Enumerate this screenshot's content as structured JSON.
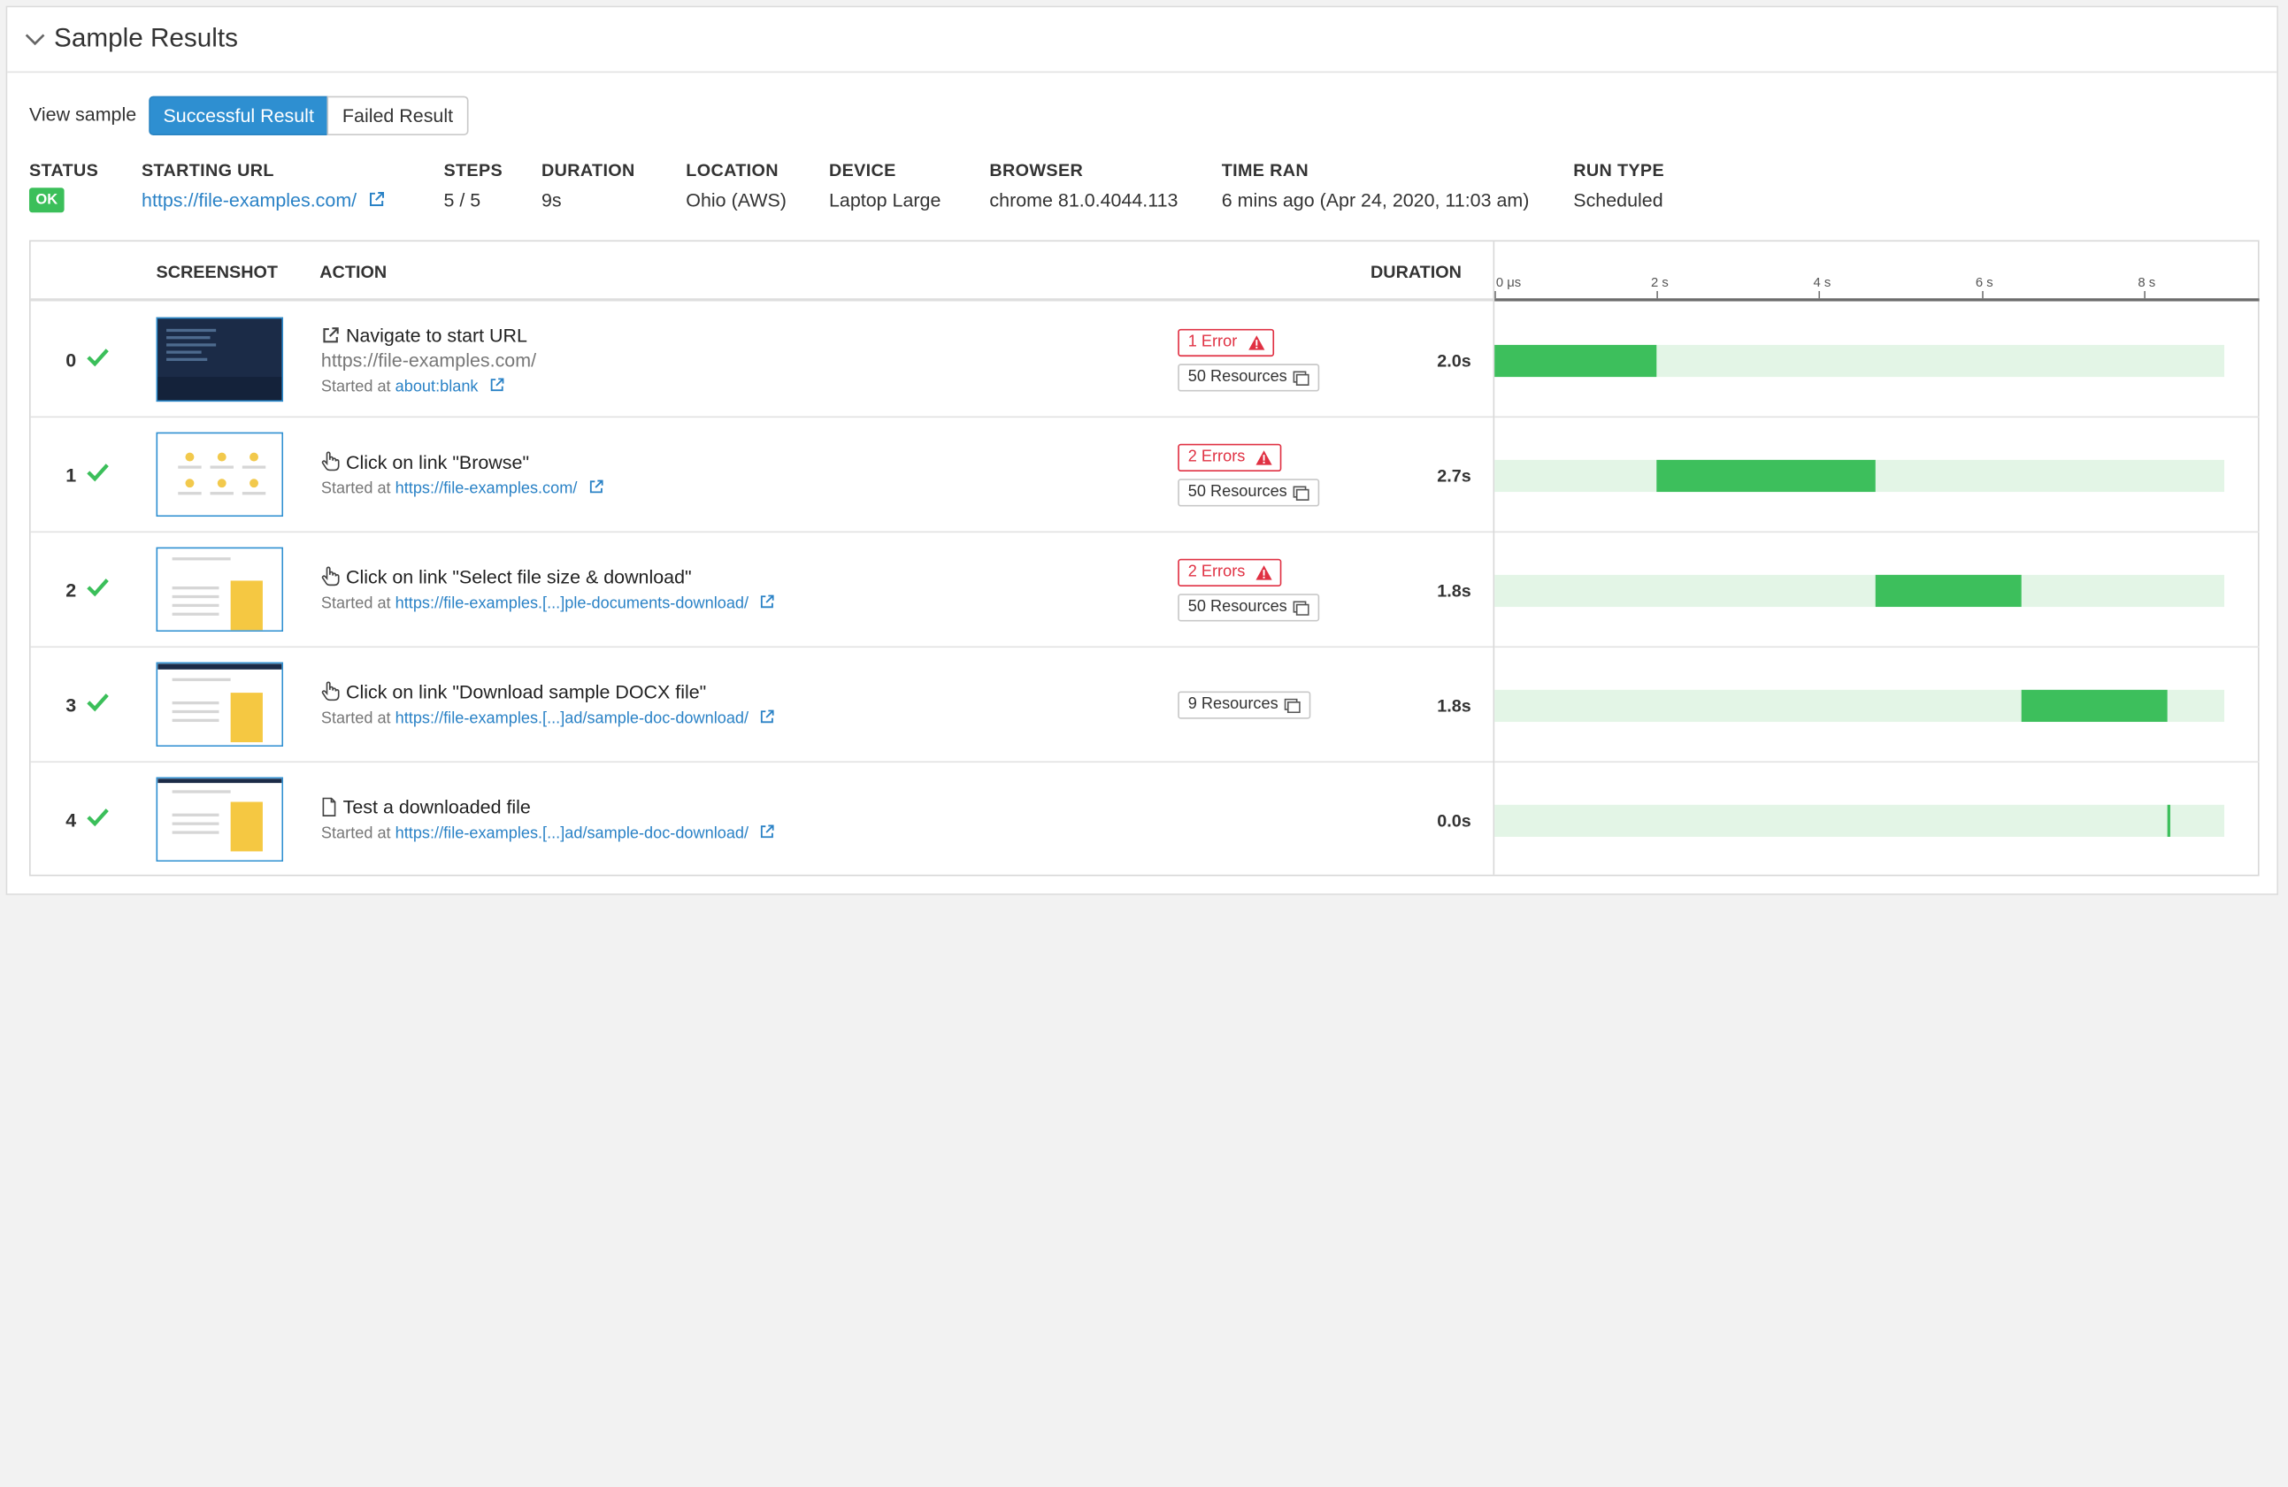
{
  "header": {
    "title": "Sample Results"
  },
  "view_sample": {
    "label": "View sample",
    "options": [
      "Successful Result",
      "Failed Result"
    ],
    "selected": "Successful Result"
  },
  "meta": {
    "status": {
      "label": "STATUS",
      "value": "OK"
    },
    "starting_url": {
      "label": "STARTING URL",
      "value": "https://file-examples.com/"
    },
    "steps": {
      "label": "STEPS",
      "value": "5 / 5"
    },
    "duration": {
      "label": "DURATION",
      "value": "9s"
    },
    "location": {
      "label": "LOCATION",
      "value": "Ohio (AWS)"
    },
    "device": {
      "label": "DEVICE",
      "value": "Laptop Large"
    },
    "browser": {
      "label": "BROWSER",
      "value": "chrome 81.0.4044.113"
    },
    "time_ran": {
      "label": "TIME RAN",
      "value": "6 mins ago (Apr 24, 2020, 11:03 am)"
    },
    "run_type": {
      "label": "RUN TYPE",
      "value": "Scheduled"
    }
  },
  "table": {
    "columns": {
      "screenshot": "SCREENSHOT",
      "action": "ACTION",
      "duration": "DURATION"
    },
    "timeline_ticks": [
      "0 μs",
      "2 s",
      "4 s",
      "6 s",
      "8 s"
    ],
    "started_prefix": "Started at",
    "colors": {
      "success": "#3dbf5c",
      "track": "#e3f5e6",
      "error": "#e03143",
      "link": "#2a82c6"
    },
    "rows": [
      {
        "index": "0",
        "action": "Navigate to start URL",
        "action_icon": "external-link-icon",
        "url": "https://file-examples.com/",
        "started_at": "about:blank",
        "errors": "1 Error",
        "resources": "50 Resources",
        "duration": "2.0s",
        "start_s": 0.0,
        "duration_s": 2.0
      },
      {
        "index": "1",
        "action": "Click on link \"Browse\"",
        "action_icon": "pointer-hand-icon",
        "started_at": "https://file-examples.com/",
        "errors": "2 Errors",
        "resources": "50 Resources",
        "duration": "2.7s",
        "start_s": 2.0,
        "duration_s": 2.7
      },
      {
        "index": "2",
        "action": "Click on link \"Select file size & download\"",
        "action_icon": "pointer-hand-icon",
        "started_at": "https://file-examples.[...]ple-documents-download/",
        "errors": "2 Errors",
        "resources": "50 Resources",
        "duration": "1.8s",
        "start_s": 4.7,
        "duration_s": 1.8
      },
      {
        "index": "3",
        "action": "Click on link \"Download sample DOCX file\"",
        "action_icon": "pointer-hand-icon",
        "started_at": "https://file-examples.[...]ad/sample-doc-download/",
        "resources": "9 Resources",
        "duration": "1.8s",
        "start_s": 6.5,
        "duration_s": 1.8
      },
      {
        "index": "4",
        "action": "Test a downloaded file",
        "action_icon": "file-icon",
        "started_at": "https://file-examples.[...]ad/sample-doc-download/",
        "duration": "0.0s",
        "start_s": 8.3,
        "duration_s": 0.0
      }
    ]
  }
}
